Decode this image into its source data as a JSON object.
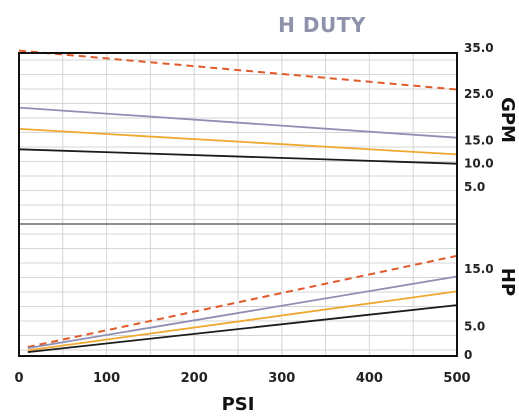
{
  "chart_data": {
    "type": "line",
    "title": "H DUTY",
    "xlabel": "PSI",
    "x_ticks": [
      "0",
      "100",
      "200",
      "300",
      "400",
      "500"
    ],
    "xlim": [
      0,
      500
    ],
    "grid": true,
    "gpm_panel": {
      "axis_label": "GPM",
      "tick_labels": [
        "35.0",
        "25.0",
        "15.0",
        "10.0",
        "5.0"
      ],
      "tick_values": [
        35,
        25,
        15,
        10,
        5
      ],
      "series": [
        {
          "style": "dashed",
          "color": "#e05a2a",
          "x": [
            0,
            500
          ],
          "y": [
            34.4,
            26.0
          ]
        },
        {
          "style": "solid",
          "color": "#8f8fb6",
          "x": [
            0,
            500
          ],
          "y": [
            22.1,
            15.6
          ]
        },
        {
          "style": "solid",
          "color": "#f0a830",
          "x": [
            0,
            500
          ],
          "y": [
            17.5,
            12.0
          ]
        },
        {
          "style": "solid",
          "color": "#1c1c1c",
          "x": [
            0,
            500
          ],
          "y": [
            13.1,
            10.0
          ]
        }
      ]
    },
    "hp_panel": {
      "axis_label": "HP",
      "tick_labels": [
        "15.0",
        "5.0",
        "0"
      ],
      "tick_values": [
        15,
        5,
        0
      ],
      "series": [
        {
          "style": "dashed",
          "color": "#e05a2a",
          "x": [
            10,
            500
          ],
          "y": [
            1.4,
            17.3
          ]
        },
        {
          "style": "solid",
          "color": "#8f8fb6",
          "x": [
            10,
            500
          ],
          "y": [
            1.2,
            13.7
          ]
        },
        {
          "style": "solid",
          "color": "#f0a830",
          "x": [
            10,
            500
          ],
          "y": [
            0.8,
            11.1
          ]
        },
        {
          "style": "solid",
          "color": "#1c1c1c",
          "x": [
            10,
            500
          ],
          "y": [
            0.5,
            8.7
          ]
        }
      ]
    }
  }
}
